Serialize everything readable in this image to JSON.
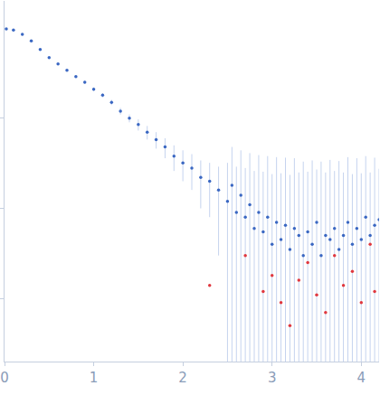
{
  "chart_data": {
    "type": "scatter",
    "log": "y",
    "tick_labels": "x",
    "grid": false,
    "xlim": [
      0,
      4.2
    ],
    "xticks": [
      0,
      1,
      2,
      3,
      4
    ],
    "ylim": [
      0.0002,
      2
    ],
    "yticks": [
      0.001,
      0.01,
      0.1
    ],
    "series": [
      {
        "color": "#3a67c2",
        "marker": "circle",
        "x": [
          0.02,
          0.1,
          0.2,
          0.3,
          0.4,
          0.5,
          0.6,
          0.7,
          0.8,
          0.9,
          1.0,
          1.1,
          1.2,
          1.3,
          1.4,
          1.5,
          1.6,
          1.7,
          1.8,
          1.9,
          2.0,
          2.1,
          2.2,
          2.3,
          2.4,
          2.5,
          2.55,
          2.6,
          2.65,
          2.7,
          2.75,
          2.8,
          2.85,
          2.9,
          2.95,
          3.0,
          3.05,
          3.1,
          3.15,
          3.2,
          3.25,
          3.3,
          3.35,
          3.4,
          3.45,
          3.5,
          3.55,
          3.6,
          3.65,
          3.7,
          3.75,
          3.8,
          3.85,
          3.9,
          3.95,
          4.0,
          4.05,
          4.1,
          4.15,
          4.2
        ],
        "values": [
          0.98,
          0.95,
          0.85,
          0.72,
          0.58,
          0.47,
          0.4,
          0.34,
          0.29,
          0.25,
          0.21,
          0.18,
          0.15,
          0.12,
          0.1,
          0.085,
          0.07,
          0.058,
          0.048,
          0.038,
          0.032,
          0.028,
          0.022,
          0.02,
          0.016,
          0.012,
          0.018,
          0.009,
          0.014,
          0.008,
          0.011,
          0.006,
          0.009,
          0.0055,
          0.008,
          0.004,
          0.007,
          0.0045,
          0.0065,
          0.0035,
          0.006,
          0.005,
          0.003,
          0.0055,
          0.004,
          0.007,
          0.003,
          0.005,
          0.0045,
          0.006,
          0.0035,
          0.005,
          0.007,
          0.004,
          0.006,
          0.0045,
          0.008,
          0.005,
          0.0065,
          0.0075
        ],
        "error": [
          0.01,
          0.01,
          0.01,
          0.01,
          0.01,
          0.01,
          0.01,
          0.01,
          0.01,
          0.01,
          0.01,
          0.01,
          0.01,
          0.01,
          0.01,
          0.012,
          0.012,
          0.012,
          0.012,
          0.012,
          0.012,
          0.012,
          0.012,
          0.012,
          0.013,
          0.02,
          0.03,
          0.02,
          0.03,
          0.02,
          0.03,
          0.02,
          0.03,
          0.02,
          0.03,
          0.02,
          0.03,
          0.02,
          0.03,
          0.02,
          0.03,
          0.02,
          0.03,
          0.02,
          0.03,
          0.02,
          0.03,
          0.02,
          0.03,
          0.02,
          0.03,
          0.02,
          0.03,
          0.02,
          0.03,
          0.02,
          0.03,
          0.02,
          0.03,
          0.02
        ]
      },
      {
        "color": "#e0383f",
        "marker": "circle",
        "x": [
          2.3,
          2.7,
          2.9,
          3.0,
          3.1,
          3.2,
          3.3,
          3.4,
          3.5,
          3.6,
          3.7,
          3.8,
          3.9,
          4.0,
          4.1,
          4.15
        ],
        "values": [
          0.0014,
          0.003,
          0.0012,
          0.0018,
          0.0009,
          0.0005,
          0.0016,
          0.0025,
          0.0011,
          0.0007,
          0.003,
          0.0014,
          0.002,
          0.0009,
          0.004,
          0.0012
        ]
      }
    ]
  }
}
